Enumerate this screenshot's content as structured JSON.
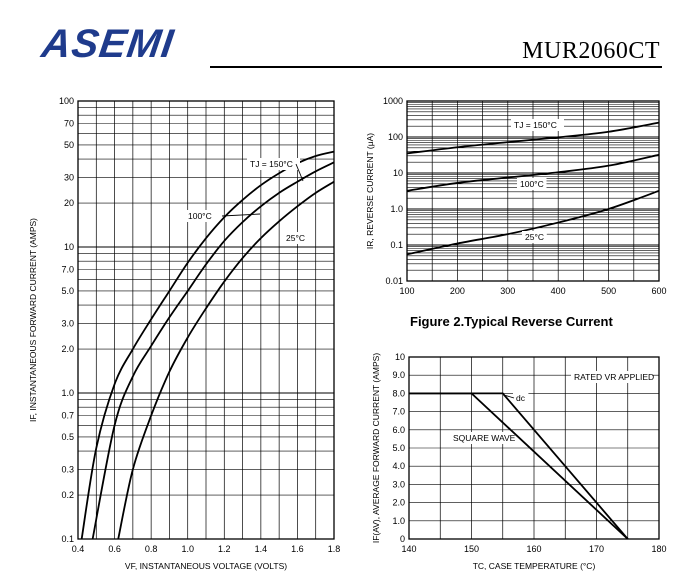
{
  "header": {
    "logo_text": "ASEMI",
    "part_number": "MUR2060CT",
    "brand_color": "#1f3b8c"
  },
  "chart_data": [
    {
      "type": "line",
      "title": "",
      "xlabel": "VF, INSTANTANEOUS VOLTAGE (VOLTS)",
      "ylabel": "IF, INSTANTANEOUS FORWARD CURRENT (AMPS)",
      "xlim": [
        0.4,
        1.8
      ],
      "ylim": [
        0.1,
        100
      ],
      "y_scale": "log",
      "grid": true,
      "x_ticks": [
        "0.4",
        "0.6",
        "0.8",
        "1.0",
        "1.2",
        "1.4",
        "1.6",
        "1.8"
      ],
      "y_ticks": [
        "0.1",
        "0.2",
        "0.3",
        "0.5",
        "0.7",
        "1.0",
        "2.0",
        "3.0",
        "5.0",
        "7.0",
        "10",
        "20",
        "30",
        "50",
        "70",
        "100"
      ],
      "series": [
        {
          "name": "TJ = 150°C",
          "x": [
            0.42,
            0.5,
            0.6,
            0.7,
            0.8,
            0.9,
            1.0,
            1.1,
            1.2,
            1.3,
            1.4,
            1.5,
            1.6,
            1.7,
            1.8
          ],
          "y": [
            0.1,
            0.42,
            1.15,
            2.0,
            3.2,
            5.0,
            7.8,
            11.5,
            16,
            21,
            26.5,
            32,
            37.5,
            42,
            45
          ]
        },
        {
          "name": "100°C",
          "x": [
            0.48,
            0.6,
            0.7,
            0.8,
            0.9,
            1.0,
            1.1,
            1.2,
            1.3,
            1.4,
            1.5,
            1.6,
            1.7,
            1.8
          ],
          "y": [
            0.1,
            0.6,
            1.3,
            2.1,
            3.3,
            5.0,
            7.6,
            11,
            14.8,
            19,
            23.5,
            28,
            33,
            38
          ]
        },
        {
          "name": "25°C",
          "x": [
            0.62,
            0.7,
            0.8,
            0.9,
            1.0,
            1.1,
            1.2,
            1.3,
            1.4,
            1.5,
            1.6,
            1.7,
            1.8
          ],
          "y": [
            0.1,
            0.3,
            0.7,
            1.4,
            2.4,
            3.8,
            5.8,
            8.4,
            11.5,
            15,
            19,
            23.5,
            28
          ]
        }
      ],
      "annotations": [
        "TJ = 150°C",
        "100°C",
        "25°C"
      ]
    },
    {
      "type": "line",
      "title": "Figure 2.Typical  Reverse  Current",
      "xlabel": "",
      "ylabel": "IR, REVERSE CURRENT (μA)",
      "xlim": [
        100,
        600
      ],
      "ylim": [
        0.01,
        1000
      ],
      "y_scale": "log",
      "grid": true,
      "x_ticks": [
        "100",
        "200",
        "300",
        "400",
        "500",
        "600"
      ],
      "y_ticks": [
        "0.01",
        "0.1",
        "1.0",
        "10",
        "100",
        "1000"
      ],
      "series": [
        {
          "name": "TJ = 150°C",
          "x": [
            100,
            200,
            300,
            400,
            500,
            600
          ],
          "y": [
            35,
            52,
            72,
            98,
            140,
            250
          ]
        },
        {
          "name": "100°C",
          "x": [
            100,
            200,
            300,
            400,
            500,
            600
          ],
          "y": [
            3.2,
            5.3,
            7.5,
            10.5,
            16,
            32
          ]
        },
        {
          "name": "25°C",
          "x": [
            100,
            200,
            300,
            400,
            500,
            600
          ],
          "y": [
            0.055,
            0.11,
            0.2,
            0.42,
            1.0,
            3.2
          ]
        }
      ],
      "annotations": [
        "TJ = 150°C",
        "100°C",
        "25°C"
      ]
    },
    {
      "type": "line",
      "title": "",
      "xlabel": "TC, CASE TEMPERATURE (°C)",
      "ylabel": "IF(AV), AVERAGE FORWARD CURRENT (AMPS)",
      "xlim": [
        140,
        180
      ],
      "ylim": [
        0,
        10
      ],
      "grid": true,
      "x_ticks": [
        "140",
        "150",
        "160",
        "170",
        "180"
      ],
      "y_ticks": [
        "0",
        "1.0",
        "2.0",
        "3.0",
        "4.0",
        "5.0",
        "6.0",
        "7.0",
        "8.0",
        "9.0",
        "10"
      ],
      "series": [
        {
          "name": "dc",
          "x": [
            140,
            155,
            175
          ],
          "y": [
            8,
            8,
            0
          ]
        },
        {
          "name": "SQUARE WAVE",
          "x": [
            140,
            150,
            175
          ],
          "y": [
            8,
            8,
            0
          ]
        }
      ],
      "annotations": [
        "RATED VR APPLIED",
        "dc",
        "SQUARE WAVE"
      ]
    }
  ]
}
